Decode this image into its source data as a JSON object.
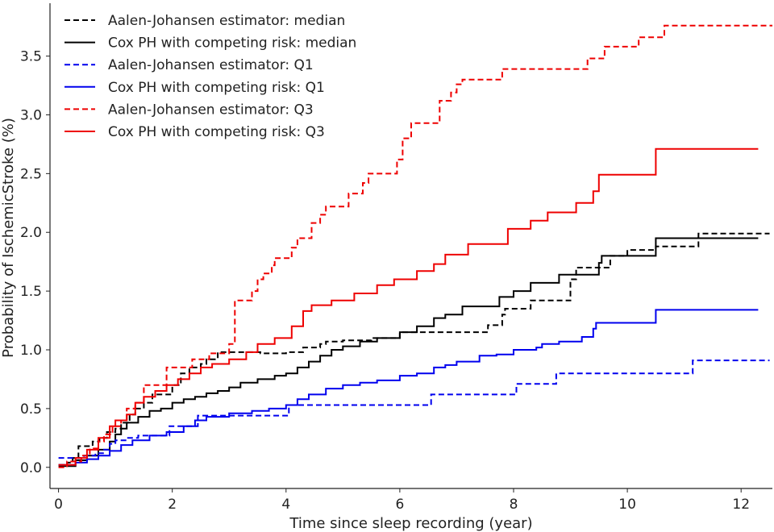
{
  "chart_data": {
    "type": "line",
    "title": "",
    "xlabel": "Time since sleep recording (year)",
    "ylabel": "Probability of IschemicStroke (%)",
    "xlim": [
      -0.15,
      12.55
    ],
    "ylim": [
      -0.18,
      3.95
    ],
    "xticks": [
      0,
      2,
      4,
      6,
      8,
      10,
      12
    ],
    "yticks": [
      0.0,
      0.5,
      1.0,
      1.5,
      2.0,
      2.5,
      3.0,
      3.5
    ],
    "ytick_labels": [
      "0.0",
      "0.5",
      "1.0",
      "1.5",
      "2.0",
      "2.5",
      "3.0",
      "3.5"
    ],
    "legend_position": "top-left",
    "grid": false,
    "series": [
      {
        "name": "Aalen-Johansen estimator: median",
        "color": "#000000",
        "dash": "dashed",
        "points": [
          [
            0,
            0.02
          ],
          [
            0.15,
            0.04
          ],
          [
            0.25,
            0.08
          ],
          [
            0.35,
            0.18
          ],
          [
            0.5,
            0.18
          ],
          [
            0.6,
            0.22
          ],
          [
            0.72,
            0.25
          ],
          [
            0.85,
            0.3
          ],
          [
            1.0,
            0.33
          ],
          [
            1.1,
            0.38
          ],
          [
            1.25,
            0.45
          ],
          [
            1.35,
            0.5
          ],
          [
            1.5,
            0.55
          ],
          [
            1.65,
            0.62
          ],
          [
            1.9,
            0.62
          ],
          [
            2.0,
            0.7
          ],
          [
            2.15,
            0.8
          ],
          [
            2.3,
            0.85
          ],
          [
            2.5,
            0.88
          ],
          [
            2.6,
            0.92
          ],
          [
            2.8,
            0.98
          ],
          [
            3.5,
            0.98
          ],
          [
            3.55,
            0.97
          ],
          [
            4.0,
            0.98
          ],
          [
            4.3,
            1.02
          ],
          [
            4.6,
            1.05
          ],
          [
            4.7,
            1.07
          ],
          [
            5.0,
            1.08
          ],
          [
            5.5,
            1.1
          ],
          [
            6.0,
            1.15
          ],
          [
            6.5,
            1.15
          ],
          [
            7.5,
            1.15
          ],
          [
            7.55,
            1.21
          ],
          [
            7.8,
            1.3
          ],
          [
            7.85,
            1.35
          ],
          [
            8.3,
            1.42
          ],
          [
            8.9,
            1.42
          ],
          [
            9.0,
            1.6
          ],
          [
            9.1,
            1.7
          ],
          [
            9.5,
            1.7
          ],
          [
            9.7,
            1.8
          ],
          [
            10.0,
            1.85
          ],
          [
            10.5,
            1.88
          ],
          [
            11.2,
            1.88
          ],
          [
            11.25,
            1.99
          ],
          [
            12.5,
            1.99
          ]
        ]
      },
      {
        "name": "Cox PH with competing risk: median",
        "color": "#000000",
        "dash": "solid",
        "points": [
          [
            0,
            0.01
          ],
          [
            0.3,
            0.06
          ],
          [
            0.5,
            0.1
          ],
          [
            0.7,
            0.15
          ],
          [
            0.9,
            0.22
          ],
          [
            1.0,
            0.28
          ],
          [
            1.1,
            0.33
          ],
          [
            1.2,
            0.38
          ],
          [
            1.4,
            0.43
          ],
          [
            1.6,
            0.48
          ],
          [
            1.8,
            0.5
          ],
          [
            2.0,
            0.55
          ],
          [
            2.2,
            0.58
          ],
          [
            2.4,
            0.6
          ],
          [
            2.6,
            0.63
          ],
          [
            2.8,
            0.65
          ],
          [
            3.0,
            0.68
          ],
          [
            3.2,
            0.72
          ],
          [
            3.5,
            0.75
          ],
          [
            3.8,
            0.78
          ],
          [
            4.0,
            0.8
          ],
          [
            4.2,
            0.85
          ],
          [
            4.4,
            0.9
          ],
          [
            4.6,
            0.95
          ],
          [
            4.8,
            1.0
          ],
          [
            5.0,
            1.03
          ],
          [
            5.3,
            1.07
          ],
          [
            5.6,
            1.1
          ],
          [
            6.0,
            1.15
          ],
          [
            6.3,
            1.2
          ],
          [
            6.6,
            1.27
          ],
          [
            6.8,
            1.3
          ],
          [
            7.1,
            1.37
          ],
          [
            7.7,
            1.37
          ],
          [
            7.75,
            1.45
          ],
          [
            8.0,
            1.5
          ],
          [
            8.3,
            1.57
          ],
          [
            8.6,
            1.57
          ],
          [
            8.8,
            1.64
          ],
          [
            9.3,
            1.64
          ],
          [
            9.5,
            1.74
          ],
          [
            9.55,
            1.8
          ],
          [
            10.5,
            1.8
          ],
          [
            10.5,
            1.95
          ],
          [
            12.3,
            1.95
          ]
        ]
      },
      {
        "name": "Aalen-Johansen estimator: Q1",
        "color": "#0000ee",
        "dash": "dashed",
        "points": [
          [
            0,
            0.08
          ],
          [
            0.4,
            0.08
          ],
          [
            0.45,
            0.1
          ],
          [
            0.6,
            0.1
          ],
          [
            0.65,
            0.12
          ],
          [
            0.8,
            0.15
          ],
          [
            0.9,
            0.2
          ],
          [
            1.0,
            0.23
          ],
          [
            1.2,
            0.25
          ],
          [
            1.4,
            0.27
          ],
          [
            1.9,
            0.27
          ],
          [
            1.95,
            0.35
          ],
          [
            2.4,
            0.35
          ],
          [
            2.45,
            0.44
          ],
          [
            3.0,
            0.44
          ],
          [
            3.05,
            0.44
          ],
          [
            4.0,
            0.44
          ],
          [
            4.05,
            0.53
          ],
          [
            6.5,
            0.53
          ],
          [
            6.55,
            0.62
          ],
          [
            8.0,
            0.62
          ],
          [
            8.05,
            0.71
          ],
          [
            8.7,
            0.71
          ],
          [
            8.75,
            0.8
          ],
          [
            11.1,
            0.8
          ],
          [
            11.15,
            0.91
          ],
          [
            12.5,
            0.91
          ]
        ]
      },
      {
        "name": "Cox PH with competing risk: Q1",
        "color": "#0000ee",
        "dash": "solid",
        "points": [
          [
            0,
            0.02
          ],
          [
            0.3,
            0.04
          ],
          [
            0.5,
            0.07
          ],
          [
            0.7,
            0.1
          ],
          [
            0.9,
            0.14
          ],
          [
            1.1,
            0.19
          ],
          [
            1.3,
            0.23
          ],
          [
            1.6,
            0.27
          ],
          [
            1.9,
            0.3
          ],
          [
            2.2,
            0.35
          ],
          [
            2.4,
            0.4
          ],
          [
            2.6,
            0.43
          ],
          [
            3.0,
            0.46
          ],
          [
            3.4,
            0.48
          ],
          [
            3.7,
            0.5
          ],
          [
            4.0,
            0.53
          ],
          [
            4.2,
            0.58
          ],
          [
            4.4,
            0.62
          ],
          [
            4.7,
            0.67
          ],
          [
            5.0,
            0.7
          ],
          [
            5.3,
            0.72
          ],
          [
            5.6,
            0.74
          ],
          [
            6.0,
            0.78
          ],
          [
            6.3,
            0.8
          ],
          [
            6.6,
            0.85
          ],
          [
            6.8,
            0.87
          ],
          [
            7.0,
            0.9
          ],
          [
            7.3,
            0.9
          ],
          [
            7.4,
            0.95
          ],
          [
            7.7,
            0.96
          ],
          [
            8.0,
            1.0
          ],
          [
            8.4,
            1.02
          ],
          [
            8.5,
            1.05
          ],
          [
            8.8,
            1.07
          ],
          [
            9.2,
            1.11
          ],
          [
            9.4,
            1.18
          ],
          [
            9.45,
            1.23
          ],
          [
            10.5,
            1.23
          ],
          [
            10.5,
            1.34
          ],
          [
            12.3,
            1.34
          ]
        ]
      },
      {
        "name": "Aalen-Johansen estimator: Q3",
        "color": "#ee0000",
        "dash": "dashed",
        "points": [
          [
            0,
            0.0
          ],
          [
            0.15,
            0.05
          ],
          [
            0.4,
            0.1
          ],
          [
            0.55,
            0.16
          ],
          [
            0.7,
            0.22
          ],
          [
            0.8,
            0.28
          ],
          [
            0.95,
            0.35
          ],
          [
            1.1,
            0.4
          ],
          [
            1.2,
            0.5
          ],
          [
            1.35,
            0.55
          ],
          [
            1.5,
            0.7
          ],
          [
            1.8,
            0.7
          ],
          [
            1.9,
            0.85
          ],
          [
            2.2,
            0.85
          ],
          [
            2.35,
            0.92
          ],
          [
            2.65,
            0.97
          ],
          [
            3.0,
            1.05
          ],
          [
            3.1,
            1.42
          ],
          [
            3.4,
            1.5
          ],
          [
            3.5,
            1.6
          ],
          [
            3.6,
            1.65
          ],
          [
            3.75,
            1.72
          ],
          [
            3.8,
            1.78
          ],
          [
            4.1,
            1.87
          ],
          [
            4.2,
            1.95
          ],
          [
            4.45,
            2.08
          ],
          [
            4.6,
            2.15
          ],
          [
            4.7,
            2.22
          ],
          [
            5.1,
            2.33
          ],
          [
            5.35,
            2.42
          ],
          [
            5.45,
            2.5
          ],
          [
            5.85,
            2.5
          ],
          [
            5.95,
            2.62
          ],
          [
            6.05,
            2.8
          ],
          [
            6.2,
            2.93
          ],
          [
            6.5,
            2.93
          ],
          [
            6.7,
            3.12
          ],
          [
            6.9,
            3.19
          ],
          [
            7.0,
            3.26
          ],
          [
            7.1,
            3.3
          ],
          [
            7.7,
            3.3
          ],
          [
            7.8,
            3.39
          ],
          [
            9.2,
            3.39
          ],
          [
            9.3,
            3.48
          ],
          [
            9.6,
            3.58
          ],
          [
            10.1,
            3.58
          ],
          [
            10.2,
            3.66
          ],
          [
            10.6,
            3.66
          ],
          [
            10.65,
            3.76
          ],
          [
            12.55,
            3.76
          ]
        ]
      },
      {
        "name": "Cox PH with competing risk: Q3",
        "color": "#ee0000",
        "dash": "solid",
        "points": [
          [
            0,
            0.02
          ],
          [
            0.3,
            0.08
          ],
          [
            0.5,
            0.15
          ],
          [
            0.7,
            0.25
          ],
          [
            0.9,
            0.35
          ],
          [
            1.0,
            0.4
          ],
          [
            1.2,
            0.45
          ],
          [
            1.35,
            0.55
          ],
          [
            1.5,
            0.6
          ],
          [
            1.7,
            0.65
          ],
          [
            1.9,
            0.7
          ],
          [
            2.1,
            0.75
          ],
          [
            2.3,
            0.8
          ],
          [
            2.5,
            0.85
          ],
          [
            2.7,
            0.88
          ],
          [
            3.0,
            0.92
          ],
          [
            3.3,
            0.98
          ],
          [
            3.5,
            1.05
          ],
          [
            3.8,
            1.1
          ],
          [
            4.1,
            1.2
          ],
          [
            4.3,
            1.33
          ],
          [
            4.45,
            1.38
          ],
          [
            4.8,
            1.42
          ],
          [
            5.2,
            1.48
          ],
          [
            5.6,
            1.55
          ],
          [
            5.9,
            1.6
          ],
          [
            6.3,
            1.67
          ],
          [
            6.6,
            1.73
          ],
          [
            6.8,
            1.81
          ],
          [
            7.1,
            1.81
          ],
          [
            7.2,
            1.9
          ],
          [
            7.7,
            1.9
          ],
          [
            7.9,
            2.03
          ],
          [
            8.3,
            2.1
          ],
          [
            8.6,
            2.17
          ],
          [
            8.8,
            2.17
          ],
          [
            9.1,
            2.25
          ],
          [
            9.4,
            2.35
          ],
          [
            9.5,
            2.49
          ],
          [
            10.5,
            2.49
          ],
          [
            10.5,
            2.71
          ],
          [
            12.3,
            2.71
          ]
        ]
      }
    ]
  }
}
